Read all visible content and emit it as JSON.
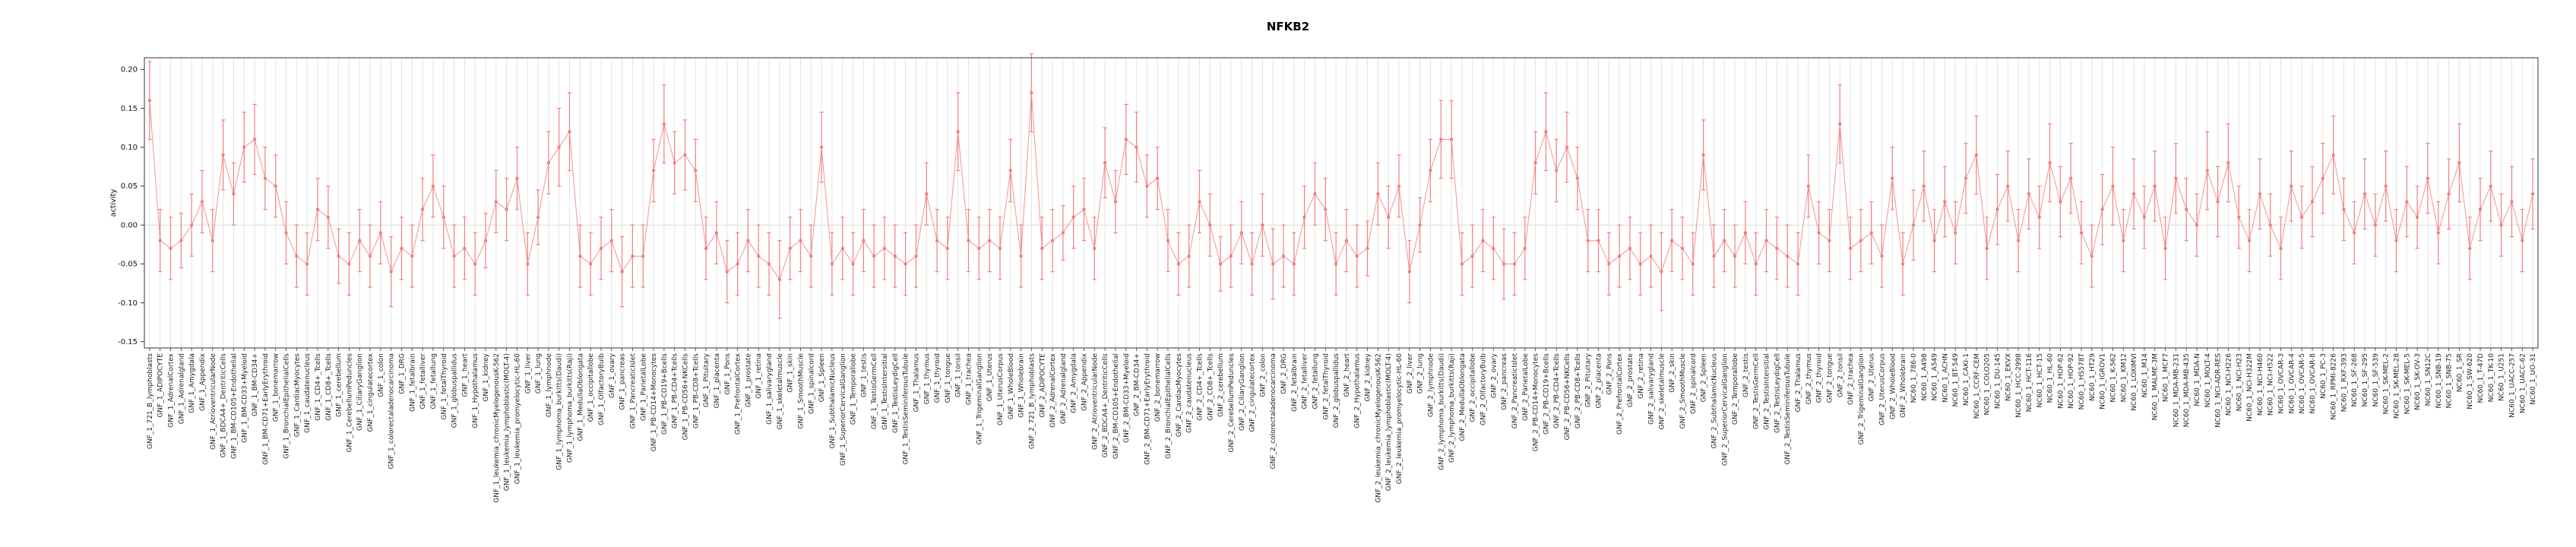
{
  "title": "NFKB2",
  "colors": {
    "accent": "#f08080",
    "grid": "#e4e4e4",
    "zero_line": "#d9d9d9",
    "axis": "#333333",
    "tick_text": "#111111",
    "label_text": "#222222"
  },
  "chart_data": {
    "type": "scatter",
    "title": "NFKB2",
    "xlabel": "",
    "ylabel": "activity",
    "ylim": [
      -0.158,
      0.215
    ],
    "yticks": [
      -0.15,
      -0.1,
      -0.05,
      0.0,
      0.05,
      0.1,
      0.15,
      0.2
    ],
    "grid": "vertical-per-category",
    "legend": "none",
    "marker": "circle-with-error-bars",
    "point_color": "#f08080",
    "categories": [
      "GNF_1_721_B_lymphoblasts",
      "GNF_1_ADIPOCYTE",
      "GNF_1_AdrenalCortex",
      "GNF_1_Adrenalgland",
      "GNF_1_Amygdala",
      "GNF_1_Appendix",
      "GNF_1_AtrioventricularNode",
      "GNF_1_BDCA4+_DentriticCells",
      "GNF_1_BM-CD105+Endothelial",
      "GNF_1_BM-CD33+Myeloid",
      "GNF_1_BM-CD34+",
      "GNF_1_BM-CD71+EarlyErythroid",
      "GNF_1_bonemarrow",
      "GNF_1_BronchialEpithelialCells",
      "GNF_1_CardiacMyocytes",
      "GNF_1_caudatenucleus",
      "GNF_1_CD4+_Tcells",
      "GNF_1_CD8+_Tcells",
      "GNF_1_cerebellum",
      "GNF_1_CerebellumPeduncles",
      "GNF_1_CiliaryGanglion",
      "GNF_1_cingulatecortex",
      "GNF_1_colon",
      "GNF_1_colorectaladenocarcinoma",
      "GNF_1_DRG",
      "GNF_1_fetalbrain",
      "GNF_1_fetalliver",
      "GNF_1_fetallung",
      "GNF_1_fetalThyroid",
      "GNF_1_globuspallidus",
      "GNF_1_heart",
      "GNF_1_Hypothalamus",
      "GNF_1_kidney",
      "GNF_1_leukemia_chronicMyelogenousK-562",
      "GNF_1_leukemia_lymphoblastic(MOLT-4)",
      "GNF_1_leukemia_promyelocytic-HL-60",
      "GNF_1_liver",
      "GNF_1_lung",
      "GNF_1_lymphnode",
      "GNF_1_lymphoma_burkitts(Daudi)",
      "GNF_1_lymphoma_burkitts(Raji)",
      "GNF_1_MedullaOblongata",
      "GNF_1_occipitallobe",
      "GNF_1_OlfactoryBulb",
      "GNF_1_ovary",
      "GNF_1_pancreas",
      "GNF_1_PancreaticIslet",
      "GNF_1_ParietalLobe",
      "GNF_1_PB-CD14+Monocytes",
      "GNF_1_PB-CD19+Bcells",
      "GNF_1_PB-CD4+Tcells",
      "GNF_1_PB-CD56+NKCells",
      "GNF_1_PB-CD8+Tcells",
      "GNF_1_Pituitary",
      "GNF_1_placenta",
      "GNF_1_Pons",
      "GNF_1_PrefrontalCortex",
      "GNF_1_prostate",
      "GNF_1_retina",
      "GNF_1_salivarygland",
      "GNF_1_skeletalmuscle",
      "GNF_1_skin",
      "GNF_1_SmoothMuscle",
      "GNF_1_spinalcord",
      "GNF_1_Spleen",
      "GNF_1_SubthalamicNucleus",
      "GNF_1_SuperiorCervicalGanglion",
      "GNF_1_Temporallobe",
      "GNF_1_testis",
      "GNF_1_TestisGermCell",
      "GNF_1_TestisIntersitial",
      "GNF_1_TestisLeydigCell",
      "GNF_1_TestisSeminiferousTubule",
      "GNF_1_Thalamus",
      "GNF_1_thymus",
      "GNF_1_thyroid",
      "GNF_1_tongue",
      "GNF_1_tonsil",
      "GNF_1_trachea",
      "GNF_1_TrigeminalGanglion",
      "GNF_1_Uterus",
      "GNF_1_UterusCorpus",
      "GNF_1_WholeBlood",
      "GNF_1_Wholebrain",
      "GNF_2_721_B_lymphoblasts",
      "GNF_2_ADIPOCYTE",
      "GNF_2_AdrenalCortex",
      "GNF_2_Adrenalgland",
      "GNF_2_Amygdala",
      "GNF_2_Appendix",
      "GNF_2_AtrioventricularNode",
      "GNF_2_BDCA4+_DentriticCells",
      "GNF_2_BM-CD105+Endothelial",
      "GNF_2_BM-CD33+Myeloid",
      "GNF_2_BM-CD34+",
      "GNF_2_BM-CD71+EarlyErythroid",
      "GNF_2_bonemarrow",
      "GNF_2_BronchialEpithelialCells",
      "GNF_2_CardiacMyocytes",
      "GNF_2_caudatenucleus",
      "GNF_2_CD4+_Tcells",
      "GNF_2_CD8+_Tcells",
      "GNF_2_cerebellum",
      "GNF_2_CerebellumPeduncles",
      "GNF_2_CiliaryGanglion",
      "GNF_2_cingulatecortex",
      "GNF_2_colon",
      "GNF_2_colorectaladenocarcinoma",
      "GNF_2_DRG",
      "GNF_2_fetalbrain",
      "GNF_2_fetalliver",
      "GNF_2_fetallung",
      "GNF_2_fetalThyroid",
      "GNF_2_globuspallidus",
      "GNF_2_heart",
      "GNF_2_Hypothalamus",
      "GNF_2_kidney",
      "GNF_2_leukemia_chronicMyelogenousK-562",
      "GNF_2_leukemia_lymphoblastic(MOLT-4)",
      "GNF_2_leukemia_promyelocytic-HL-60",
      "GNF_2_liver",
      "GNF_2_lung",
      "GNF_2_lymphnode",
      "GNF_2_lymphoma_burkitts(Daudi)",
      "GNF_2_lymphoma_burkitts(Raji)",
      "GNF_2_MedullaOblongata",
      "GNF_2_occipitallobe",
      "GNF_2_OlfactoryBulb",
      "GNF_2_ovary",
      "GNF_2_pancreas",
      "GNF_2_PancreaticIslet",
      "GNF_2_ParietalLobe",
      "GNF_2_PB-CD14+Monocytes",
      "GNF_2_PB-CD19+Bcells",
      "GNF_2_PB-CD4+Tcells",
      "GNF_2_PB-CD56+NKCells",
      "GNF_2_PB-CD8+Tcells",
      "GNF_2_Pituitary",
      "GNF_2_placenta",
      "GNF_2_Pons",
      "GNF_2_PrefrontalCortex",
      "GNF_2_prostate",
      "GNF_2_retina",
      "GNF_2_salivarygland",
      "GNF_2_skeletalmuscle",
      "GNF_2_skin",
      "GNF_2_SmoothMuscle",
      "GNF_2_spinalcord",
      "GNF_2_Spleen",
      "GNF_2_SubthalamicNucleus",
      "GNF_2_SuperiorCervicalGanglion",
      "GNF_2_Temporallobe",
      "GNF_2_testis",
      "GNF_2_TestisGermCell",
      "GNF_2_TestisIntersitial",
      "GNF_2_TestisLeydigCell",
      "GNF_2_TestisSeminiferousTubule",
      "GNF_2_Thalamus",
      "GNF_2_thymus",
      "GNF_2_thyroid",
      "GNF_2_tongue",
      "GNF_2_tonsil",
      "GNF_2_trachea",
      "GNF_2_TrigeminalGanglion",
      "GNF_2_Uterus",
      "GNF_2_UterusCorpus",
      "GNF_2_WholeBlood",
      "GNF_2_Wholebrain",
      "NC60_1_786-0",
      "NC60_1_A498",
      "NC60_1_A549",
      "NC60_1_ACHN",
      "NC60_1_BT-549",
      "NC60_1_CAKI-1",
      "NC60_1_CCRF-CEM",
      "NC60_1_COLO205",
      "NC60_1_DU-145",
      "NC60_1_EKVX",
      "NC60_1_HCC-2998",
      "NC60_1_HCT-116",
      "NC60_1_HCT-15",
      "NC60_1_HL-60",
      "NC60_1_HOP-62",
      "NC60_1_HOP-92",
      "NC60_1_HS578T",
      "NC60_1_HT29",
      "NC60_1_IGROV1",
      "NC60_1_K-562",
      "NC60_1_KM12",
      "NC60_1_LOXIMVI",
      "NC60_1_M14",
      "NC60_1_MALME-3M",
      "NC60_1_MCF7",
      "NC60_1_MDA-MB-231",
      "NC60_1_MDA-MB-435",
      "NC60_1_MDA-N",
      "NC60_1_MOLT-4",
      "NC60_1_NCI-ADR-RES",
      "NC60_1_NCI-H226",
      "NC60_1_NCI-H23",
      "NC60_1_NCI-H322M",
      "NC60_1_NCI-H460",
      "NC60_1_NCI-H522",
      "NC60_1_OVCAR-3",
      "NC60_1_OVCAR-4",
      "NC60_1_OVCAR-5",
      "NC60_1_OVCAR-8",
      "NC60_1_PC-3",
      "NC60_1_RPMI-8226",
      "NC60_1_RXF-393",
      "NC60_1_SF-268",
      "NC60_1_SF-295",
      "NC60_1_SF-539",
      "NC60_1_SK-MEL-2",
      "NC60_1_SK-MEL-28",
      "NC60_1_SK-MEL-5",
      "NC60_1_SK-OV-3",
      "NC60_1_SN12C",
      "NC60_1_SNB-19",
      "NC60_1_SNB-75",
      "NC60_1_SR",
      "NC60_1_SW-620",
      "NC60_1_T-47D",
      "NC60_1_TK-10",
      "NC60_1_U251",
      "NC60_1_UACC-257",
      "NC60_1_UACC-62",
      "NC60_1_UO-31"
    ],
    "series": [
      {
        "name": "activity",
        "values": [
          0.16,
          -0.02,
          -0.03,
          -0.02,
          0.0,
          0.03,
          -0.02,
          0.09,
          0.04,
          0.1,
          0.11,
          0.06,
          0.05,
          -0.01,
          -0.04,
          -0.05,
          0.02,
          0.01,
          -0.04,
          -0.05,
          -0.02,
          -0.04,
          -0.01,
          -0.06,
          -0.03,
          -0.04,
          0.02,
          0.05,
          0.01,
          -0.04,
          -0.03,
          -0.05,
          -0.02,
          0.03,
          0.02,
          0.06,
          -0.05,
          0.01,
          0.08,
          0.1,
          0.12,
          -0.04,
          -0.05,
          -0.03,
          -0.02,
          -0.06,
          -0.04,
          -0.04,
          0.07,
          0.13,
          0.08,
          0.09,
          0.07,
          -0.03,
          -0.01,
          -0.06,
          -0.05,
          -0.02,
          -0.04,
          -0.05,
          -0.07,
          -0.03,
          -0.02,
          -0.04,
          0.1,
          -0.05,
          -0.03,
          -0.05,
          -0.02,
          -0.04,
          -0.03,
          -0.04,
          -0.05,
          -0.04,
          0.04,
          -0.02,
          -0.03,
          0.12,
          -0.02,
          -0.03,
          -0.02,
          -0.03,
          0.07,
          -0.04,
          0.17,
          -0.03,
          -0.02,
          -0.01,
          0.01,
          0.02,
          -0.03,
          0.08,
          0.03,
          0.11,
          0.1,
          0.05,
          0.06,
          -0.02,
          -0.05,
          -0.04,
          0.03,
          0.0,
          -0.05,
          -0.04,
          -0.01,
          -0.05,
          0.0,
          -0.05,
          -0.04,
          -0.05,
          0.01,
          0.04,
          0.02,
          -0.05,
          -0.02,
          -0.04,
          -0.03,
          0.04,
          0.01,
          0.05,
          -0.06,
          0.0,
          0.07,
          0.11,
          0.11,
          -0.05,
          -0.04,
          -0.02,
          -0.03,
          -0.05,
          -0.05,
          -0.03,
          0.08,
          0.12,
          0.07,
          0.1,
          0.06,
          -0.02,
          -0.02,
          -0.05,
          -0.04,
          -0.03,
          -0.05,
          -0.04,
          -0.06,
          -0.02,
          -0.03,
          -0.05,
          0.09,
          -0.04,
          -0.02,
          -0.04,
          -0.01,
          -0.05,
          -0.02,
          -0.03,
          -0.04,
          -0.05,
          0.05,
          -0.01,
          -0.02,
          0.13,
          -0.03,
          -0.02,
          -0.01,
          -0.04,
          0.06,
          -0.05,
          0.0,
          0.05,
          -0.02,
          0.03,
          -0.01,
          0.06,
          0.09,
          -0.03,
          0.02,
          0.05,
          -0.02,
          0.04,
          0.01,
          0.08,
          0.03,
          0.06,
          -0.01,
          -0.04,
          0.02,
          0.05,
          -0.02,
          0.04,
          0.01,
          0.05,
          -0.03,
          0.06,
          0.02,
          0.0,
          0.07,
          0.03,
          0.08,
          0.01,
          -0.02,
          0.04,
          0.0,
          -0.03,
          0.05,
          0.01,
          0.03,
          0.06,
          0.09,
          0.02,
          -0.01,
          0.04,
          0.0,
          0.05,
          -0.02,
          0.03,
          0.01,
          0.06,
          -0.01,
          0.04,
          0.08,
          -0.03,
          0.02,
          0.05,
          0.0,
          0.03,
          -0.02,
          0.04
        ],
        "errors": [
          0.05,
          0.04,
          0.04,
          0.035,
          0.04,
          0.04,
          0.04,
          0.045,
          0.04,
          0.045,
          0.045,
          0.04,
          0.04,
          0.04,
          0.04,
          0.04,
          0.04,
          0.04,
          0.035,
          0.04,
          0.04,
          0.04,
          0.04,
          0.045,
          0.04,
          0.04,
          0.04,
          0.04,
          0.04,
          0.04,
          0.04,
          0.04,
          0.035,
          0.04,
          0.04,
          0.04,
          0.04,
          0.035,
          0.04,
          0.05,
          0.05,
          0.04,
          0.04,
          0.04,
          0.04,
          0.045,
          0.04,
          0.04,
          0.04,
          0.05,
          0.04,
          0.045,
          0.04,
          0.04,
          0.04,
          0.04,
          0.04,
          0.04,
          0.04,
          0.04,
          0.05,
          0.04,
          0.04,
          0.04,
          0.045,
          0.04,
          0.04,
          0.04,
          0.04,
          0.04,
          0.04,
          0.04,
          0.04,
          0.04,
          0.04,
          0.04,
          0.04,
          0.05,
          0.04,
          0.04,
          0.04,
          0.04,
          0.04,
          0.04,
          0.05,
          0.04,
          0.04,
          0.035,
          0.04,
          0.04,
          0.04,
          0.045,
          0.04,
          0.045,
          0.045,
          0.04,
          0.04,
          0.04,
          0.04,
          0.04,
          0.04,
          0.04,
          0.035,
          0.04,
          0.04,
          0.04,
          0.04,
          0.045,
          0.04,
          0.04,
          0.04,
          0.04,
          0.04,
          0.04,
          0.04,
          0.04,
          0.035,
          0.04,
          0.04,
          0.04,
          0.04,
          0.035,
          0.04,
          0.05,
          0.05,
          0.04,
          0.04,
          0.04,
          0.04,
          0.045,
          0.04,
          0.04,
          0.04,
          0.05,
          0.04,
          0.045,
          0.04,
          0.04,
          0.04,
          0.04,
          0.04,
          0.04,
          0.04,
          0.04,
          0.05,
          0.04,
          0.04,
          0.04,
          0.045,
          0.04,
          0.04,
          0.04,
          0.04,
          0.04,
          0.04,
          0.04,
          0.04,
          0.04,
          0.04,
          0.04,
          0.04,
          0.05,
          0.04,
          0.04,
          0.04,
          0.04,
          0.04,
          0.04,
          0.045,
          0.045,
          0.04,
          0.045,
          0.04,
          0.045,
          0.05,
          0.04,
          0.045,
          0.045,
          0.04,
          0.045,
          0.04,
          0.05,
          0.045,
          0.045,
          0.04,
          0.04,
          0.045,
          0.05,
          0.04,
          0.045,
          0.04,
          0.045,
          0.04,
          0.045,
          0.04,
          0.04,
          0.05,
          0.045,
          0.05,
          0.04,
          0.04,
          0.045,
          0.04,
          0.04,
          0.045,
          0.04,
          0.045,
          0.045,
          0.05,
          0.04,
          0.04,
          0.045,
          0.04,
          0.045,
          0.04,
          0.045,
          0.04,
          0.045,
          0.04,
          0.045,
          0.05,
          0.04,
          0.04,
          0.045,
          0.04,
          0.045,
          0.04,
          0.045
        ]
      }
    ]
  }
}
